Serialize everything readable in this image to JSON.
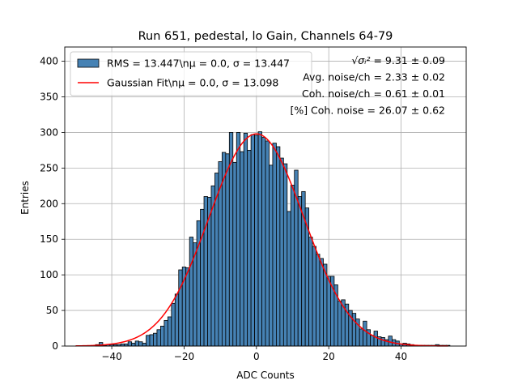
{
  "chart_data": {
    "type": "bar",
    "title": "Run 651, pedestal, lo Gain, Channels 64-79",
    "xlabel": "ADC Counts",
    "ylabel": "Entries",
    "xlim": [
      -53,
      58
    ],
    "ylim": [
      0,
      420
    ],
    "xticks": [
      -40,
      -20,
      0,
      20,
      40
    ],
    "yticks": [
      0,
      50,
      100,
      150,
      200,
      250,
      300,
      350,
      400
    ],
    "grid": true,
    "bin_width": 1,
    "bins": {
      "x": [
        -44,
        -43,
        -42,
        -41,
        -40,
        -39,
        -38,
        -37,
        -36,
        -35,
        -34,
        -33,
        -32,
        -31,
        -30,
        -29,
        -28,
        -27,
        -26,
        -25,
        -24,
        -23,
        -22,
        -21,
        -20,
        -19,
        -18,
        -17,
        -16,
        -15,
        -14,
        -13,
        -12,
        -11,
        -10,
        -9,
        -8,
        -7,
        -6,
        -5,
        -4,
        -3,
        -2,
        -1,
        0,
        1,
        2,
        3,
        4,
        5,
        6,
        7,
        8,
        9,
        10,
        11,
        12,
        13,
        14,
        15,
        16,
        17,
        18,
        19,
        20,
        21,
        22,
        23,
        24,
        25,
        26,
        27,
        28,
        29,
        30,
        31,
        32,
        33,
        34,
        35,
        36,
        37,
        38,
        39,
        40,
        41,
        42,
        43,
        44,
        45,
        46,
        47,
        48,
        49,
        50,
        51,
        52,
        53
      ],
      "values": [
        2,
        5,
        1,
        2,
        2,
        2,
        2,
        3,
        3,
        6,
        4,
        7,
        6,
        4,
        15,
        16,
        18,
        23,
        28,
        36,
        41,
        60,
        73,
        107,
        111,
        110,
        153,
        145,
        176,
        192,
        210,
        209,
        225,
        243,
        259,
        272,
        270,
        300,
        258,
        300,
        273,
        299,
        275,
        297,
        296,
        301,
        293,
        288,
        254,
        285,
        280,
        264,
        256,
        189,
        226,
        247,
        210,
        217,
        194,
        153,
        140,
        129,
        123,
        115,
        98,
        98,
        86,
        63,
        65,
        59,
        50,
        46,
        38,
        24,
        35,
        23,
        15,
        21,
        13,
        12,
        9,
        14,
        9,
        7,
        3,
        4,
        3,
        2,
        1,
        1,
        1,
        1,
        1,
        1,
        2,
        1,
        1,
        1
      ]
    },
    "series": [
      {
        "name": "RMS = 13.447\\n$\\mu$ = 0.0, $\\sigma$ = 13.447",
        "kind": "histogram",
        "color": "#4682b4"
      },
      {
        "name": "Gaussian Fit\\n$\\mu$ = 0.0, $\\sigma$ = 13.098",
        "kind": "line",
        "color": "#ff0000",
        "mu": 0.0,
        "sigma": 13.098,
        "amplitude": 298,
        "x_range": [
          -50,
          53
        ]
      }
    ],
    "legend_position": "top-left",
    "legend": [
      {
        "label": "RMS = 13.447\\nμ = 0.0, σ = 13.447",
        "kind": "patch",
        "color": "#4682b4"
      },
      {
        "label": "Gaussian Fit\\nμ = 0.0, σ = 13.098",
        "kind": "line",
        "color": "#ff0000"
      }
    ],
    "annotations": [
      {
        "prefix": "√σᵢ²",
        "text": " = 9.31 ± 0.09"
      },
      {
        "text": "Avg. noise/ch = 2.33 ± 0.02"
      },
      {
        "text": "Coh. noise/ch = 0.61 ± 0.01"
      },
      {
        "text": "[%] Coh. noise = 26.07 ± 0.62"
      }
    ]
  }
}
